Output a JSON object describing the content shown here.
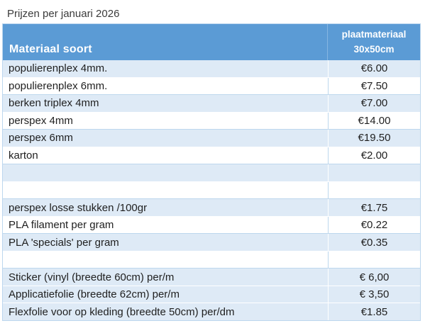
{
  "title": "Prijzen per januari 2026",
  "table": {
    "header": {
      "material_label": "Materiaal soort",
      "price_label_line1": "plaatmateriaal",
      "price_label_line2": "30x50cm"
    },
    "rows": [
      {
        "material": "populierenplex 4mm.",
        "price": "€6.00",
        "band": "blue"
      },
      {
        "material": "populierenplex 6mm.",
        "price": "€7.50",
        "band": "white"
      },
      {
        "material": "berken triplex 4mm",
        "price": "€7.00",
        "band": "blue"
      },
      {
        "material": "perspex 4mm",
        "price": "€14.00",
        "band": "white"
      },
      {
        "material": "perspex 6mm",
        "price": "€19.50",
        "band": "blue"
      },
      {
        "material": "karton",
        "price": "€2.00",
        "band": "white"
      },
      {
        "material": "",
        "price": "",
        "band": "blue"
      },
      {
        "material": "",
        "price": "",
        "band": "white"
      },
      {
        "material": "perspex losse stukken /100gr",
        "price": "€1.75",
        "band": "blue"
      },
      {
        "material": "PLA filament per gram",
        "price": "€0.22",
        "band": "white"
      },
      {
        "material": "PLA 'specials' per gram",
        "price": "€0.35",
        "band": "blue"
      },
      {
        "material": "",
        "price": "",
        "band": "white"
      },
      {
        "material": "Sticker (vinyl (breedte 60cm) per/m",
        "price": "€ 6,00",
        "band": "blue"
      },
      {
        "material": "Applicatiefolie (breedte 62cm) per/m",
        "price": "€ 3,50",
        "band": "blue"
      },
      {
        "material": "Flexfolie voor op kleding (breedte 50cm) per/dm",
        "price": "€1.85",
        "band": "blue"
      }
    ],
    "colors": {
      "header_bg": "#5B9BD5",
      "header_text": "#FFFFFF",
      "band_bg": "#DEEAF6",
      "grid": "#BDD7EE",
      "body_text": "#1F1F1F"
    }
  }
}
